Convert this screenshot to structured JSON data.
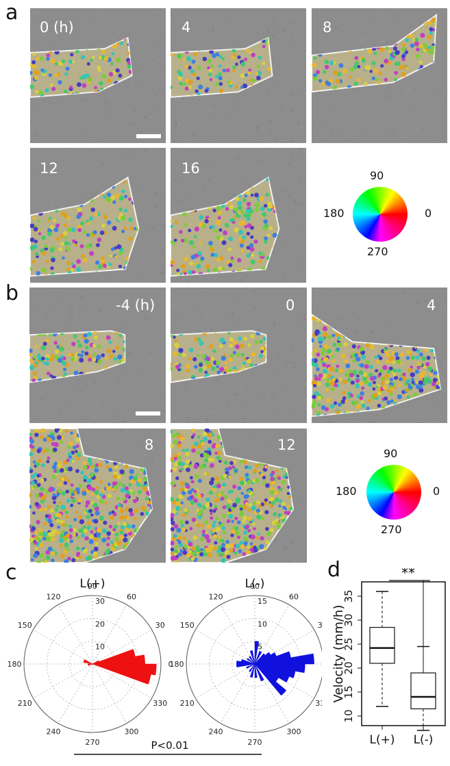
{
  "panel_letters": {
    "a": "a",
    "b": "b",
    "c": "c",
    "d": "d"
  },
  "panel_a": {
    "tiles": [
      "0 (h)",
      "4",
      "8",
      "12",
      "16"
    ],
    "wheel": {
      "top": "90",
      "left": "180",
      "right": "0",
      "bottom": "270"
    }
  },
  "panel_b": {
    "tiles": [
      "-4 (h)",
      "0",
      "4",
      "8",
      "12"
    ],
    "wheel": {
      "top": "90",
      "left": "180",
      "right": "0",
      "bottom": "270"
    }
  },
  "colors": {
    "image_bg": "#8d8d8d",
    "cell_palette": [
      "#e8b830",
      "#e0a020",
      "#7ccc3a",
      "#44c86a",
      "#33c4b8",
      "#3f7fe0",
      "#4a3cc0",
      "#c040c0",
      "#d8d040"
    ],
    "rose_lplus": "#ee1111",
    "rose_lminus": "#1111dd"
  },
  "chart_data": [
    {
      "type": "polar-rose",
      "title": "L(+)",
      "angle_ticks": [
        "0",
        "30",
        "60",
        "90",
        "120",
        "150",
        "180",
        "210",
        "240",
        "270",
        "300",
        "330"
      ],
      "radial_ticks": [
        "10",
        "20",
        "30"
      ],
      "rmax": 30,
      "bins": [
        {
          "angle_start": 0,
          "angle_end": 10,
          "value": 23
        },
        {
          "angle_start": 10,
          "angle_end": 20,
          "value": 19
        },
        {
          "angle_start": 350,
          "angle_end": 360,
          "value": 28
        },
        {
          "angle_start": 340,
          "angle_end": 350,
          "value": 26
        },
        {
          "angle_start": 20,
          "angle_end": 30,
          "value": 3
        },
        {
          "angle_start": 150,
          "angle_end": 170,
          "value": 4
        },
        {
          "angle_start": 180,
          "angle_end": 200,
          "value": 2
        }
      ]
    },
    {
      "type": "polar-rose",
      "title": "L(-)",
      "angle_ticks": [
        "0",
        "30",
        "60",
        "90",
        "120",
        "150",
        "180",
        "210",
        "240",
        "270",
        "300",
        "330"
      ],
      "radial_ticks": [
        "5",
        "10",
        "15"
      ],
      "rmax": 15,
      "bins": [
        {
          "angle_start": 0,
          "angle_end": 10,
          "value": 13
        },
        {
          "angle_start": 10,
          "angle_end": 20,
          "value": 8
        },
        {
          "angle_start": 20,
          "angle_end": 30,
          "value": 5
        },
        {
          "angle_start": 30,
          "angle_end": 40,
          "value": 4
        },
        {
          "angle_start": 40,
          "angle_end": 50,
          "value": 3
        },
        {
          "angle_start": 60,
          "angle_end": 70,
          "value": 3
        },
        {
          "angle_start": 80,
          "angle_end": 90,
          "value": 5
        },
        {
          "angle_start": 100,
          "angle_end": 110,
          "value": 3
        },
        {
          "angle_start": 120,
          "angle_end": 130,
          "value": 2
        },
        {
          "angle_start": 140,
          "angle_end": 150,
          "value": 2
        },
        {
          "angle_start": 160,
          "angle_end": 170,
          "value": 3
        },
        {
          "angle_start": 170,
          "angle_end": 180,
          "value": 4
        },
        {
          "angle_start": 180,
          "angle_end": 190,
          "value": 4
        },
        {
          "angle_start": 200,
          "angle_end": 210,
          "value": 2
        },
        {
          "angle_start": 230,
          "angle_end": 240,
          "value": 2
        },
        {
          "angle_start": 250,
          "angle_end": 260,
          "value": 3
        },
        {
          "angle_start": 270,
          "angle_end": 280,
          "value": 3
        },
        {
          "angle_start": 290,
          "angle_end": 300,
          "value": 4
        },
        {
          "angle_start": 310,
          "angle_end": 320,
          "value": 9
        },
        {
          "angle_start": 320,
          "angle_end": 330,
          "value": 6
        },
        {
          "angle_start": 330,
          "angle_end": 340,
          "value": 8
        },
        {
          "angle_start": 340,
          "angle_end": 350,
          "value": 9
        },
        {
          "angle_start": 350,
          "angle_end": 360,
          "value": 11
        }
      ]
    },
    {
      "type": "boxplot",
      "ylabel": "Velocity (mm/h)",
      "yticks": [
        10,
        15,
        20,
        25,
        30,
        35
      ],
      "ylim": [
        8,
        38
      ],
      "categories": [
        "L(+)",
        "L(-)"
      ],
      "boxes": [
        {
          "whisker_low": 12,
          "q1": 21,
          "median": 24.2,
          "q3": 28.5,
          "whisker_high": 36
        },
        {
          "whisker_low": 7,
          "q1": 11.5,
          "median": 14,
          "q3": 19,
          "whisker_high": 24.5
        }
      ],
      "significance": "**",
      "p_value_text": "P<0.01"
    }
  ]
}
